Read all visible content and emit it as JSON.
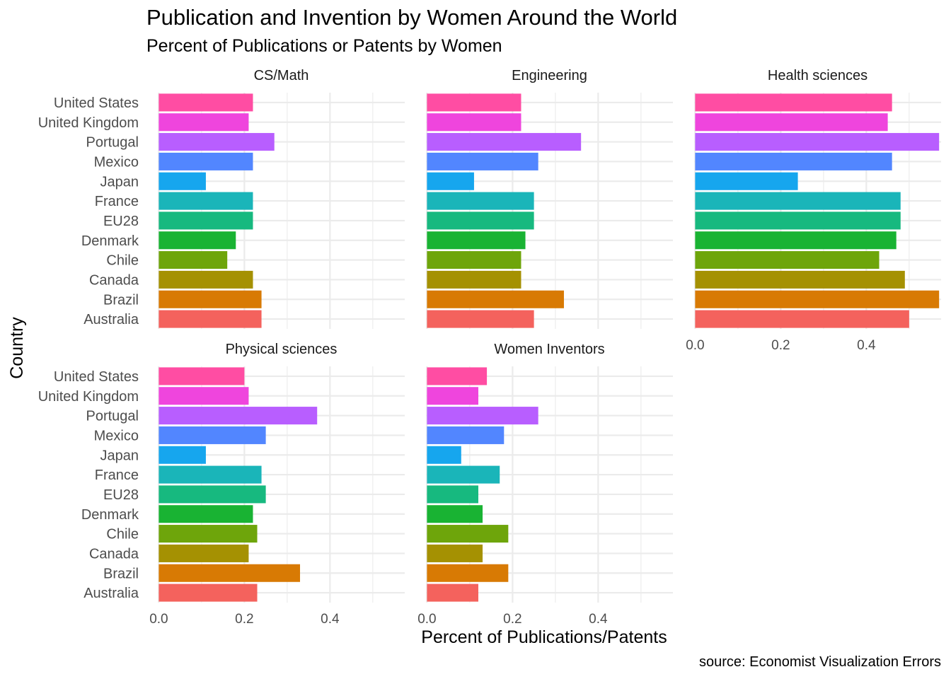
{
  "chart_data": {
    "type": "bar",
    "orientation": "horizontal",
    "title": "Publication and Invention by Women Around the World",
    "subtitle": "Percent of Publications or Patents by Women",
    "xlabel": "Percent of Publications/Patents",
    "ylabel": "Country",
    "caption": "source: Economist Visualization Errors",
    "xlim": [
      0,
      0.57
    ],
    "xticks": [
      "0.0",
      "0.2",
      "0.4"
    ],
    "xtick_values": [
      0,
      0.2,
      0.4
    ],
    "grid": true,
    "legend": "none",
    "categories": [
      "United States",
      "United Kingdom",
      "Portugal",
      "Mexico",
      "Japan",
      "France",
      "EU28",
      "Denmark",
      "Chile",
      "Canada",
      "Brazil",
      "Australia"
    ],
    "colors": [
      "#FF4DA3",
      "#EF45DD",
      "#B85EFF",
      "#5286FF",
      "#16A6EE",
      "#1AB5B9",
      "#17B97F",
      "#19B333",
      "#6EA50B",
      "#A59102",
      "#D87A04",
      "#F4625D"
    ],
    "facets": [
      {
        "name": "CS/Math",
        "values": [
          0.22,
          0.21,
          0.27,
          0.22,
          0.11,
          0.22,
          0.22,
          0.18,
          0.16,
          0.22,
          0.24,
          0.24
        ]
      },
      {
        "name": "Engineering",
        "values": [
          0.22,
          0.22,
          0.36,
          0.26,
          0.11,
          0.25,
          0.25,
          0.23,
          0.22,
          0.22,
          0.32,
          0.25
        ]
      },
      {
        "name": "Health sciences",
        "values": [
          0.46,
          0.45,
          0.57,
          0.46,
          0.24,
          0.48,
          0.48,
          0.47,
          0.43,
          0.49,
          0.57,
          0.5
        ]
      },
      {
        "name": "Physical sciences",
        "values": [
          0.2,
          0.21,
          0.37,
          0.25,
          0.11,
          0.24,
          0.25,
          0.22,
          0.23,
          0.21,
          0.33,
          0.23
        ]
      },
      {
        "name": "Women Inventors",
        "values": [
          0.14,
          0.12,
          0.26,
          0.18,
          0.08,
          0.17,
          0.12,
          0.13,
          0.19,
          0.13,
          0.19,
          0.12
        ]
      }
    ]
  }
}
